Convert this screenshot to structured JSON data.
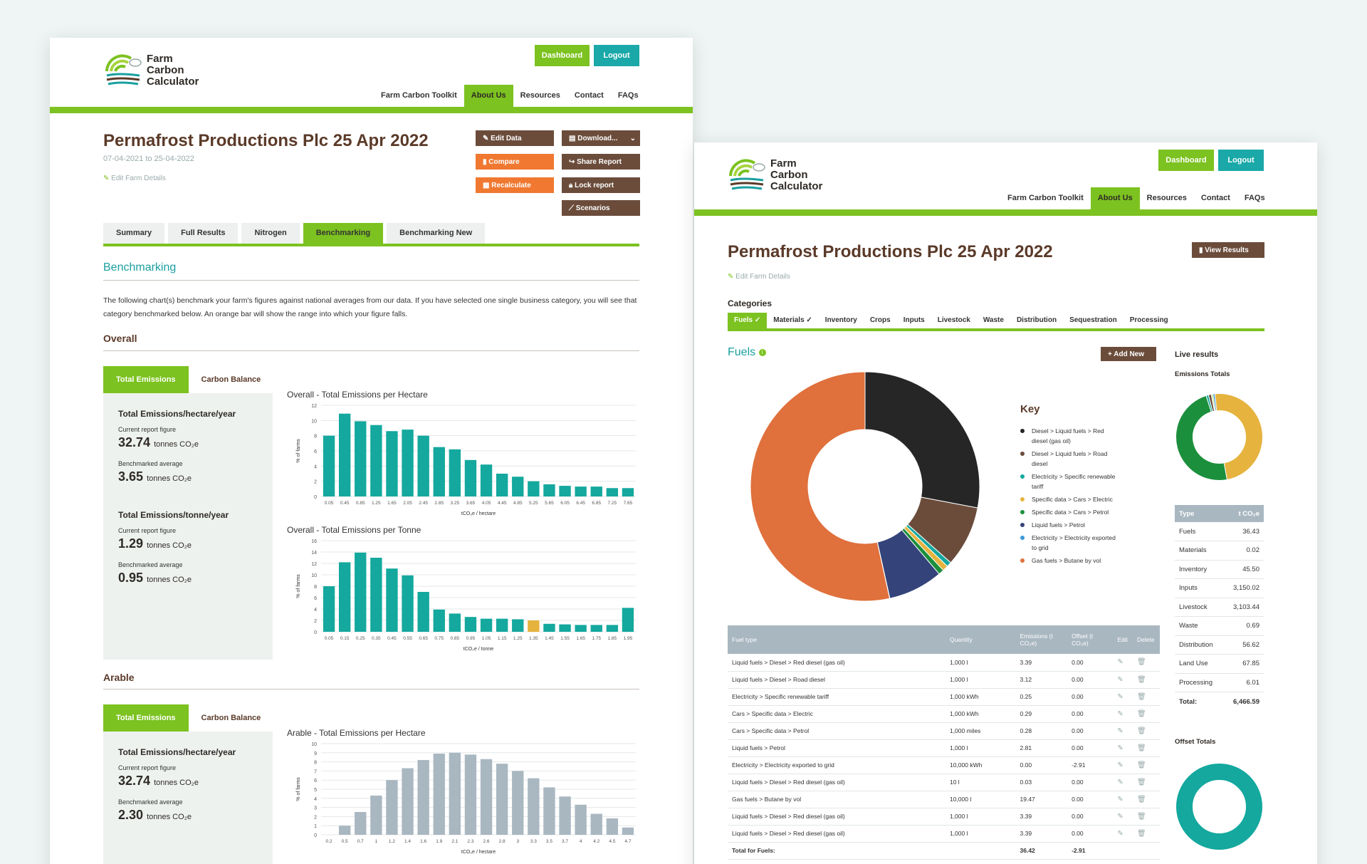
{
  "brand": {
    "line1": "Farm",
    "line2": "Carbon",
    "line3": "Calculator"
  },
  "header": {
    "dashboard": "Dashboard",
    "logout": "Logout"
  },
  "nav": [
    "Farm Carbon Toolkit",
    "About Us",
    "Resources",
    "Contact",
    "FAQs"
  ],
  "colors": {
    "green": "#7cc220",
    "teal": "#1a9fa0",
    "brown": "#6b4c3b",
    "orange": "#f07830",
    "bar": "#14a89e",
    "greybar": "#a9b7c1"
  },
  "left": {
    "title": "Permafrost Productions Plc 25 Apr 2022",
    "dates": "07-04-2021 to 25-04-2022",
    "edit_farm": "Edit Farm Details",
    "actions": [
      "Edit Data",
      "Download...",
      "Compare",
      "Share Report",
      "Recalculate",
      "Lock report",
      "Scenarios"
    ],
    "tabs": [
      "Summary",
      "Full Results",
      "Nitrogen",
      "Benchmarking",
      "Benchmarking New"
    ],
    "heading": "Benchmarking",
    "paragraph": "The following chart(s) benchmark your farm's figures against national averages from our data. If you have selected one single business category, you will see that category benchmarked below. An orange bar will show the range into which your figure falls.",
    "overall": "Overall",
    "arable": "Arable",
    "ptabs": [
      "Total Emissions",
      "Carbon Balance"
    ],
    "panel1": {
      "h1": "Total Emissions/hectare/year",
      "cap1": "Current report figure",
      "v1": "32.74",
      "cap2": "Benchmarked average",
      "v2": "3.65",
      "h2": "Total Emissions/tonne/year",
      "cap3": "Current report figure",
      "v3": "1.29",
      "cap4": "Benchmarked average",
      "v4": "0.95",
      "unit": "tonnes CO₂e"
    },
    "panel2": {
      "h1": "Total Emissions/hectare/year",
      "cap1": "Current report figure",
      "v1": "32.74",
      "cap2": "Benchmarked average",
      "v2": "2.30",
      "unit": "tonnes CO₂e"
    }
  },
  "right": {
    "title": "Permafrost Productions Plc 25 Apr 2022",
    "edit_farm": "Edit Farm Details",
    "view_results": "View Results",
    "categories_label": "Categories",
    "categories": [
      "Fuels ✓",
      "Materials ✓",
      "Inventory",
      "Crops",
      "Inputs",
      "Livestock",
      "Waste",
      "Distribution",
      "Sequestration",
      "Processing"
    ],
    "fuels": "Fuels",
    "add_new": "+ Add New",
    "key_title": "Key",
    "key": [
      {
        "label": "Diesel > Liquid fuels > Red diesel (gas oil)",
        "color": "#262626"
      },
      {
        "label": "Diesel > Liquid fuels > Road diesel",
        "color": "#6b4c3b"
      },
      {
        "label": "Electricity > Specific renewable tariff",
        "color": "#14a89e"
      },
      {
        "label": "Specific data > Cars > Electric",
        "color": "#e6b33e"
      },
      {
        "label": "Specific data > Cars > Petrol",
        "color": "#1c8f3c"
      },
      {
        "label": "Liquid fuels > Petrol",
        "color": "#34447a"
      },
      {
        "label": "Electricity > Electricity exported to grid",
        "color": "#3a9ad9"
      },
      {
        "label": "Gas fuels > Butane by vol",
        "color": "#e0703c"
      }
    ],
    "live_results": "Live results",
    "emissions_totals": "Emissions Totals",
    "offset_totals": "Offset Totals",
    "table_headers": [
      "Fuel type",
      "Quantity",
      "Emissions (t CO₂e)",
      "Offset (t CO₂e)",
      "Edit",
      "Delete"
    ],
    "rows": [
      [
        "Liquid fuels > Diesel > Red diesel (gas oil)",
        "1,000 l",
        "3.39",
        "0.00"
      ],
      [
        "Liquid fuels > Diesel > Road diesel",
        "1,000 l",
        "3.12",
        "0.00"
      ],
      [
        "Electricity > Specific renewable tariff",
        "1,000 kWh",
        "0.25",
        "0.00"
      ],
      [
        "Cars > Specific data > Electric",
        "1,000 kWh",
        "0.29",
        "0.00"
      ],
      [
        "Cars > Specific data > Petrol",
        "1,000 miles",
        "0.28",
        "0.00"
      ],
      [
        "Liquid fuels > Petrol",
        "1,000 l",
        "2.81",
        "0.00"
      ],
      [
        "Electricity > Electricity exported to grid",
        "10,000 kWh",
        "0.00",
        "-2.91"
      ],
      [
        "Liquid fuels > Diesel > Red diesel (gas oil)",
        "10 l",
        "0.03",
        "0.00"
      ],
      [
        "Gas fuels > Butane by vol",
        "10,000 l",
        "19.47",
        "0.00"
      ],
      [
        "Liquid fuels > Diesel > Red diesel (gas oil)",
        "1,000 l",
        "3.39",
        "0.00"
      ],
      [
        "Liquid fuels > Diesel > Red diesel (gas oil)",
        "1,000 l",
        "3.39",
        "0.00"
      ]
    ],
    "total_label": "Total for Fuels:",
    "total_em": "36.42",
    "total_off": "-2.91",
    "summary_headers": [
      "Type",
      "t CO₂e"
    ],
    "summary": [
      [
        "Fuels",
        "36.43"
      ],
      [
        "Materials",
        "0.02"
      ],
      [
        "Inventory",
        "45.50"
      ],
      [
        "Inputs",
        "3,150.02"
      ],
      [
        "Livestock",
        "3,103.44"
      ],
      [
        "Waste",
        "0.69"
      ],
      [
        "Distribution",
        "56.62"
      ],
      [
        "Land Use",
        "67.85"
      ],
      [
        "Processing",
        "6.01"
      ]
    ],
    "summary_total": [
      "Total:",
      "6,466.59"
    ]
  },
  "chart_data": [
    {
      "type": "bar",
      "title": "Overall - Total Emissions per Hectare",
      "xlabel": "tCO₂e / hectare",
      "ylabel": "% of farms",
      "ylim": [
        0,
        12
      ],
      "yticks": [
        0,
        2,
        4,
        6,
        8,
        10,
        12
      ],
      "categories": [
        "0.05",
        "0.45",
        "0.85",
        "1.25",
        "1.65",
        "2.05",
        "2.45",
        "2.85",
        "3.25",
        "3.65",
        "4.05",
        "4.45",
        "4.85",
        "5.25",
        "5.65",
        "6.05",
        "6.45",
        "6.85",
        "7.25",
        "7.65"
      ],
      "values": [
        8.0,
        10.9,
        9.9,
        9.4,
        8.6,
        8.8,
        8.0,
        6.5,
        6.2,
        4.8,
        4.2,
        3.0,
        2.6,
        2.0,
        1.6,
        1.4,
        1.3,
        1.3,
        1.1,
        1.1
      ],
      "highlight": -1
    },
    {
      "type": "bar",
      "title": "Overall - Total Emissions per Tonne",
      "xlabel": "tCO₂e / tonne",
      "ylabel": "% of farms",
      "ylim": [
        0,
        16
      ],
      "yticks": [
        0,
        2,
        4,
        6,
        8,
        10,
        12,
        14,
        16
      ],
      "categories": [
        "0.05",
        "0.15",
        "0.25",
        "0.35",
        "0.45",
        "0.55",
        "0.65",
        "0.75",
        "0.85",
        "0.95",
        "1.05",
        "1.15",
        "1.25",
        "1.35",
        "1.45",
        "1.55",
        "1.65",
        "1.75",
        "1.85",
        "1.95"
      ],
      "values": [
        8.0,
        12.2,
        13.9,
        13.0,
        11.1,
        9.9,
        7.0,
        3.9,
        3.2,
        2.6,
        2.3,
        2.3,
        2.2,
        2.0,
        1.4,
        1.3,
        1.2,
        1.2,
        1.2,
        4.2
      ],
      "highlight": 13
    },
    {
      "type": "bar",
      "title": "Arable - Total Emissions per Hectare",
      "xlabel": "tCO₂e / hectare",
      "ylabel": "% of farms",
      "ylim": [
        0,
        10
      ],
      "yticks": [
        0,
        1,
        2,
        3,
        4,
        5,
        6,
        7,
        8,
        9,
        10
      ],
      "categories": [
        "0.2",
        "0.5",
        "0.7",
        "1",
        "1.2",
        "1.4",
        "1.6",
        "1.9",
        "2.1",
        "2.3",
        "2.6",
        "2.8",
        "3",
        "3.3",
        "3.5",
        "3.7",
        "4",
        "4.2",
        "4.5",
        "4.7"
      ],
      "values": [
        0,
        1.0,
        2.5,
        4.3,
        6.0,
        7.3,
        8.2,
        8.9,
        9.0,
        8.8,
        8.3,
        7.8,
        7.0,
        6.2,
        5.2,
        4.2,
        3.3,
        2.3,
        1.8,
        0.8
      ],
      "highlight": -1
    },
    {
      "type": "pie",
      "title": "Fuels",
      "categories": [
        "Diesel > Liquid fuels > Red diesel (gas oil)",
        "Diesel > Liquid fuels > Road diesel",
        "Electricity > Specific renewable tariff",
        "Specific data > Cars > Electric",
        "Specific data > Cars > Petrol",
        "Liquid fuels > Petrol",
        "Electricity > Electricity exported to grid",
        "Gas fuels > Butane by vol"
      ],
      "values": [
        10.2,
        3.12,
        0.25,
        0.29,
        0.28,
        2.81,
        0.01,
        19.47
      ]
    },
    {
      "type": "pie",
      "title": "Emissions Totals",
      "categories": [
        "Fuels",
        "Materials",
        "Inventory",
        "Inputs",
        "Livestock",
        "Waste",
        "Distribution",
        "Land Use",
        "Processing"
      ],
      "values": [
        36.43,
        0.02,
        45.5,
        3150.02,
        3103.44,
        0.69,
        56.62,
        67.85,
        6.01
      ]
    },
    {
      "type": "pie",
      "title": "Offset Totals",
      "categories": [
        "Offset"
      ],
      "values": [
        100
      ]
    }
  ]
}
